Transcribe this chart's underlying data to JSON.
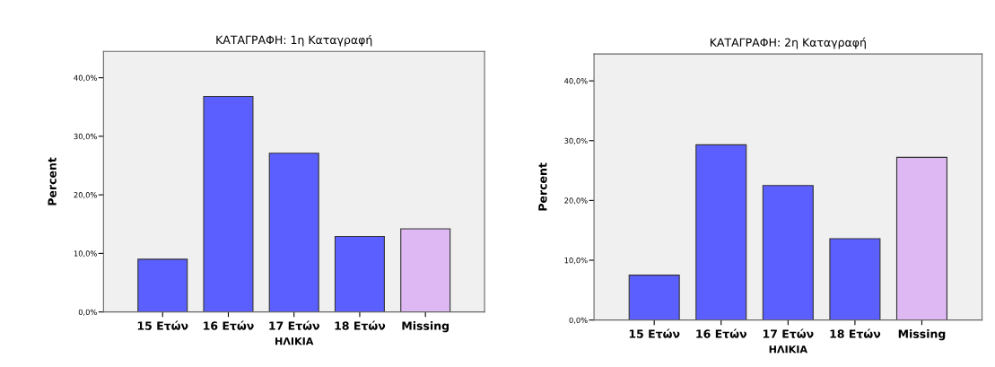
{
  "chart_data": [
    {
      "type": "bar",
      "title": "ΚΑΤΑΓΡΑΦΗ: 1η Καταγραφή",
      "xlabel": "ΗΛΙΚΙΑ",
      "ylabel": "Percent",
      "categories": [
        "15 Ετών",
        "16 Ετών",
        "17 Ετών",
        "18 Ετών",
        "Missing"
      ],
      "values": [
        9.0,
        36.8,
        27.1,
        12.9,
        14.2
      ],
      "colors": [
        "#5c5fff",
        "#5c5fff",
        "#5c5fff",
        "#5c5fff",
        "#ddb8f2"
      ],
      "ylim": [
        0,
        44.5
      ],
      "yticks": [
        {
          "value": 0,
          "label": "0,0%"
        },
        {
          "value": 10,
          "label": "10,0%"
        },
        {
          "value": 20,
          "label": "20,0%"
        },
        {
          "value": 30,
          "label": "30,0%"
        },
        {
          "value": 40,
          "label": "40,0%"
        }
      ],
      "grid": false,
      "legend": false
    },
    {
      "type": "bar",
      "title": "ΚΑΤΑΓΡΑΦΗ: 2η Καταγραφή",
      "xlabel": "ΗΛΙΚΙΑ",
      "ylabel": "Percent",
      "categories": [
        "15 Ετών",
        "16 Ετών",
        "17 Ετών",
        "18 Ετών",
        "Missing"
      ],
      "values": [
        7.5,
        29.3,
        22.5,
        13.6,
        27.2
      ],
      "colors": [
        "#5c5fff",
        "#5c5fff",
        "#5c5fff",
        "#5c5fff",
        "#ddb8f2"
      ],
      "ylim": [
        0,
        44.5
      ],
      "yticks": [
        {
          "value": 0,
          "label": "0,0%"
        },
        {
          "value": 10,
          "label": "10,0%"
        },
        {
          "value": 20,
          "label": "20,0%"
        },
        {
          "value": 30,
          "label": "30,0%"
        },
        {
          "value": 40,
          "label": "40,0%"
        }
      ],
      "grid": false,
      "legend": false
    }
  ]
}
